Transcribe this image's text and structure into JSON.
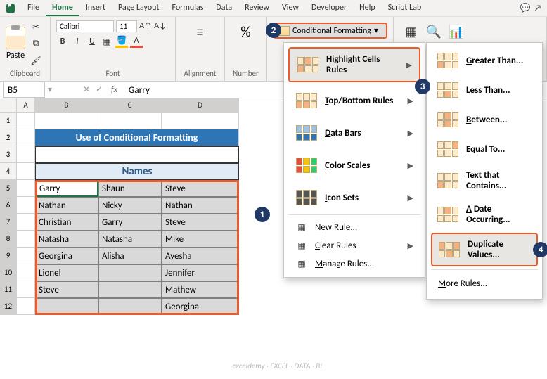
{
  "menu": {
    "items": [
      "File",
      "Home",
      "Insert",
      "Page Layout",
      "Formulas",
      "Data",
      "Review",
      "View",
      "Developer",
      "Help",
      "Script Lab"
    ],
    "active": "Home"
  },
  "ribbon": {
    "clipboard_label": "Clipboard",
    "paste_label": "Paste",
    "font_label": "Font",
    "font_name": "Calibri",
    "font_size": "11",
    "alignment_label": "Alignment",
    "number_label": "Number",
    "cf_label": "Conditional Formatting"
  },
  "namebox": {
    "ref": "B5",
    "fx": "fx",
    "value": "Garry"
  },
  "columns": [
    "A",
    "B",
    "C",
    "D"
  ],
  "rows": [
    "1",
    "2",
    "3",
    "4",
    "5",
    "6",
    "7",
    "8",
    "9",
    "10",
    "11",
    "12"
  ],
  "sheet": {
    "title": "Use of Conditional Formatting",
    "header": "Names",
    "data": [
      [
        "Garry",
        "Shaun",
        "Steve"
      ],
      [
        "Nathan",
        "Nicky",
        "Nathan"
      ],
      [
        "Christian",
        "Garry",
        "Steve"
      ],
      [
        "Natasha",
        "Natasha",
        "Mike"
      ],
      [
        "Georgina",
        "Alisha",
        "Ayesha"
      ],
      [
        "Lionel",
        "",
        "Jennifer"
      ],
      [
        "Steve",
        "",
        "Mathew"
      ],
      [
        "",
        "",
        "Georgina"
      ]
    ]
  },
  "cf_menu": {
    "items": [
      {
        "label": "Highlight Cells Rules",
        "u": "H",
        "arrow": true,
        "hl": true
      },
      {
        "label": "Top/Bottom Rules",
        "u": "T",
        "arrow": true
      },
      {
        "label": "Data Bars",
        "u": "D",
        "arrow": true
      },
      {
        "label": "Color Scales",
        "u": "C",
        "arrow": true
      },
      {
        "label": "Icon Sets",
        "u": "I",
        "arrow": true
      }
    ],
    "plain": [
      {
        "label": "New Rule...",
        "u": "N"
      },
      {
        "label": "Clear Rules",
        "u": "C",
        "arrow": true
      },
      {
        "label": "Manage Rules...",
        "u": "M"
      }
    ]
  },
  "hcr_menu": {
    "items": [
      {
        "label": "Greater Than...",
        "u": "G"
      },
      {
        "label": "Less Than...",
        "u": "L"
      },
      {
        "label": "Between...",
        "u": "B"
      },
      {
        "label": "Equal To...",
        "u": "E"
      },
      {
        "label": "Text that Contains...",
        "u": "T"
      },
      {
        "label": "A Date Occurring...",
        "u": "A"
      },
      {
        "label": "Duplicate Values...",
        "u": "D",
        "hl": true
      }
    ],
    "more": "More Rules..."
  },
  "callouts": {
    "c1": "1",
    "c2": "2",
    "c3": "3",
    "c4": "4"
  },
  "watermark": "exceldemy · EXCEL · DATA · BI"
}
